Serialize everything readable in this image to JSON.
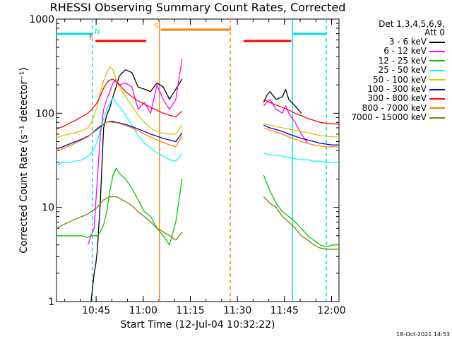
{
  "chart_data": {
    "type": "line",
    "title": "RHESSI Observing Summary Count Rates, Corrected",
    "xlabel": "Start Time (12-Jul-04 10:32:22)",
    "ylabel": "Corrected Count Rate (s⁻¹ detector⁻¹)",
    "yscale": "log",
    "ylim": [
      1,
      1000
    ],
    "xlim_minutes": [
      0,
      90
    ],
    "x_ticks": [
      {
        "label": "10:45",
        "minutes": 12.63
      },
      {
        "label": "11:00",
        "minutes": 27.63
      },
      {
        "label": "11:15",
        "minutes": 42.63
      },
      {
        "label": "11:30",
        "minutes": 57.63
      },
      {
        "label": "11:45",
        "minutes": 72.63
      },
      {
        "label": "12:00",
        "minutes": 87.63
      }
    ],
    "y_ticks": [
      {
        "label": "1",
        "value": 1
      },
      {
        "label": "10",
        "value": 10
      },
      {
        "label": "100",
        "value": 100
      },
      {
        "label": "1000",
        "value": 1000
      }
    ],
    "legend": {
      "header": [
        "Det 1,3,4,5,6,9,",
        "Att 0"
      ],
      "placement": "right"
    },
    "series": [
      {
        "name": "3 - 6 keV",
        "color": "#000000",
        "x": [
          0,
          5,
          8,
          10,
          11,
          11.5,
          12,
          12.5,
          13,
          14,
          15,
          16,
          17,
          18,
          19,
          20,
          22,
          24,
          26,
          28,
          30,
          32,
          34,
          36,
          38,
          40,
          54,
          56,
          58,
          60,
          62,
          63,
          64,
          65,
          66,
          67,
          68,
          70,
          72,
          73,
          74,
          76,
          78,
          80,
          82,
          84,
          86,
          88,
          90
        ],
        "y": [
          null,
          null,
          null,
          null,
          1,
          1.4,
          2,
          2.5,
          3.5,
          12,
          70,
          95,
          115,
          150,
          190,
          250,
          290,
          270,
          190,
          180,
          170,
          210,
          190,
          140,
          180,
          230,
          null,
          null,
          null,
          null,
          null,
          null,
          null,
          null,
          130,
          155,
          170,
          140,
          150,
          180,
          140,
          120,
          100,
          null,
          null,
          null,
          null,
          null,
          null
        ]
      },
      {
        "name": "6 - 12 keV",
        "color": "#ff00ff",
        "x": [
          0,
          4,
          6,
          8,
          10,
          11,
          12,
          13,
          14,
          15,
          16,
          17,
          18,
          19,
          20,
          22,
          24,
          26,
          28,
          30,
          32,
          34,
          36,
          38,
          40,
          54,
          56,
          58,
          60,
          62,
          63,
          64,
          65,
          66,
          67,
          68,
          70,
          72,
          73,
          74,
          76,
          78,
          80,
          82,
          84,
          86,
          88,
          90
        ],
        "y": [
          null,
          null,
          null,
          null,
          4,
          5,
          6,
          20,
          60,
          110,
          140,
          170,
          210,
          230,
          200,
          210,
          190,
          110,
          130,
          100,
          200,
          140,
          110,
          140,
          380,
          null,
          null,
          null,
          null,
          null,
          null,
          null,
          null,
          120,
          130,
          140,
          110,
          100,
          120,
          100,
          80,
          60,
          48,
          null,
          null,
          null,
          null,
          null
        ]
      },
      {
        "name": "12 - 25 keV",
        "color": "#00cc00",
        "x": [
          0,
          2,
          4,
          6,
          8,
          10,
          11,
          12,
          13,
          14,
          15,
          16,
          17,
          18,
          19,
          20,
          22,
          24,
          26,
          28,
          30,
          32,
          34,
          36,
          38,
          40,
          54,
          56,
          58,
          60,
          62,
          63,
          64,
          65,
          66,
          67,
          68,
          70,
          72,
          74,
          76,
          78,
          80,
          82,
          84,
          86,
          88,
          90
        ],
        "y": [
          5,
          5,
          5,
          5,
          5,
          4.8,
          5,
          5,
          5,
          5.5,
          6.5,
          9,
          15,
          22,
          26,
          23,
          20,
          16,
          12,
          9,
          8,
          6,
          5,
          4,
          7,
          20,
          null,
          null,
          null,
          null,
          null,
          null,
          null,
          null,
          22,
          18,
          15,
          11,
          9,
          8,
          7,
          6,
          5,
          4.5,
          4,
          3.8,
          4,
          4
        ]
      },
      {
        "name": "25 - 50 keV",
        "color": "#00ffff",
        "x": [
          0,
          2,
          4,
          6,
          8,
          10,
          11,
          12,
          13,
          14,
          15,
          16,
          17,
          18,
          19,
          20,
          22,
          24,
          26,
          28,
          30,
          32,
          34,
          36,
          38,
          40,
          54,
          56,
          58,
          60,
          62,
          63,
          64,
          65,
          66,
          67,
          68,
          70,
          72,
          74,
          76,
          78,
          80,
          82,
          84,
          86,
          88,
          90
        ],
        "y": [
          28,
          30,
          30,
          31,
          32,
          35,
          38,
          42,
          50,
          68,
          88,
          110,
          130,
          145,
          130,
          118,
          95,
          75,
          58,
          48,
          43,
          38,
          35,
          32,
          31,
          37,
          null,
          null,
          null,
          null,
          null,
          null,
          null,
          null,
          38,
          37,
          36,
          36,
          35,
          34,
          33,
          32,
          32,
          31,
          31,
          30,
          30,
          30
        ]
      },
      {
        "name": "50 - 100 keV",
        "color": "#cccc00",
        "x": [
          0,
          2,
          4,
          6,
          8,
          10,
          11,
          12,
          13,
          14,
          15,
          16,
          17,
          18,
          19,
          20,
          22,
          24,
          26,
          28,
          30,
          32,
          34,
          36,
          38,
          40,
          54,
          56,
          58,
          60,
          62,
          63,
          64,
          65,
          66,
          67,
          68,
          70,
          72,
          74,
          76,
          78,
          80,
          82,
          84,
          86,
          88,
          90
        ],
        "y": [
          55,
          58,
          60,
          62,
          65,
          70,
          78,
          95,
          120,
          170,
          220,
          270,
          310,
          290,
          230,
          190,
          150,
          120,
          95,
          80,
          70,
          64,
          61,
          60,
          60,
          75,
          null,
          null,
          null,
          null,
          null,
          null,
          null,
          null,
          78,
          76,
          75,
          72,
          70,
          68,
          66,
          64,
          62,
          60,
          58,
          57,
          56,
          56
        ]
      },
      {
        "name": "100 - 300 keV",
        "color": "#0000cc",
        "x": [
          0,
          2,
          4,
          6,
          8,
          10,
          11,
          12,
          13,
          14,
          15,
          16,
          17,
          18,
          19,
          20,
          22,
          24,
          26,
          28,
          30,
          32,
          34,
          36,
          38,
          40,
          54,
          56,
          58,
          60,
          62,
          63,
          64,
          65,
          66,
          67,
          68,
          70,
          72,
          74,
          76,
          78,
          80,
          82,
          84,
          86,
          88,
          90
        ],
        "y": [
          42,
          44,
          47,
          50,
          53,
          57,
          60,
          64,
          68,
          72,
          76,
          80,
          82,
          82,
          80,
          79,
          76,
          72,
          68,
          64,
          60,
          57,
          54,
          52,
          50,
          62,
          null,
          null,
          null,
          null,
          null,
          null,
          null,
          null,
          75,
          72,
          70,
          67,
          64,
          60,
          57,
          54,
          52,
          50,
          48,
          47,
          46,
          46
        ]
      },
      {
        "name": "300 - 800 keV",
        "color": "#ff0000",
        "x": [
          0,
          2,
          4,
          6,
          8,
          10,
          11,
          12,
          13,
          14,
          15,
          16,
          17,
          18,
          19,
          20,
          22,
          24,
          26,
          28,
          30,
          32,
          34,
          36,
          38,
          40,
          54,
          56,
          58,
          60,
          62,
          63,
          64,
          65,
          66,
          67,
          68,
          70,
          72,
          74,
          76,
          78,
          80,
          82,
          84,
          86,
          88,
          90
        ],
        "y": [
          68,
          72,
          78,
          84,
          92,
          100,
          108,
          118,
          130,
          155,
          185,
          210,
          225,
          230,
          215,
          200,
          170,
          150,
          135,
          125,
          115,
          108,
          100,
          95,
          92,
          105,
          null,
          null,
          null,
          null,
          null,
          null,
          null,
          null,
          140,
          135,
          130,
          122,
          115,
          108,
          100,
          94,
          88,
          84,
          80,
          78,
          77,
          77
        ]
      },
      {
        "name": "800 - 7000 keV",
        "color": "#ff8000",
        "x": [
          0,
          2,
          4,
          6,
          8,
          10,
          11,
          12,
          13,
          14,
          15,
          16,
          17,
          18,
          19,
          20,
          22,
          24,
          26,
          28,
          30,
          32,
          34,
          36,
          38,
          40,
          54,
          56,
          58,
          60,
          62,
          63,
          64,
          65,
          66,
          67,
          68,
          70,
          72,
          74,
          76,
          78,
          80,
          82,
          84,
          86,
          88,
          90
        ],
        "y": [
          40,
          42,
          45,
          48,
          52,
          56,
          60,
          65,
          70,
          74,
          77,
          80,
          81,
          80,
          79,
          78,
          74,
          70,
          65,
          60,
          56,
          52,
          49,
          46,
          44,
          58,
          null,
          null,
          null,
          null,
          null,
          null,
          null,
          null,
          70,
          68,
          66,
          63,
          60,
          56,
          53,
          50,
          48,
          46,
          45,
          44,
          44,
          44
        ]
      },
      {
        "name": "7000 - 15000 keV",
        "color": "#808000",
        "x": [
          0,
          2,
          4,
          6,
          8,
          10,
          11,
          12,
          13,
          14,
          15,
          16,
          17,
          18,
          19,
          20,
          22,
          24,
          26,
          28,
          30,
          32,
          34,
          36,
          38,
          40,
          54,
          56,
          58,
          60,
          62,
          63,
          64,
          65,
          66,
          67,
          68,
          70,
          72,
          74,
          76,
          78,
          80,
          82,
          84,
          86,
          88,
          90
        ],
        "y": [
          6,
          6.5,
          7,
          7.5,
          8,
          8.5,
          9,
          9.5,
          10,
          11,
          12,
          12.5,
          13,
          13,
          13,
          12.5,
          11.5,
          10.5,
          9,
          8,
          7,
          6,
          5.5,
          5,
          4.5,
          5.5,
          null,
          null,
          null,
          null,
          null,
          null,
          null,
          null,
          13,
          12,
          11,
          10,
          8,
          7,
          6,
          5,
          4.5,
          4,
          3.7,
          3.6,
          3.6,
          3.6
        ]
      }
    ],
    "status_bars": [
      {
        "label": "",
        "color": "#00e0e0",
        "row": "high",
        "x": [
          0,
          11.4
        ]
      },
      {
        "label": "N",
        "color": "#00e0e0",
        "row": "high_label",
        "x": [
          13,
          13
        ]
      },
      {
        "label": "",
        "color": "#00e0e0",
        "row": "high",
        "x": [
          75.4,
          86
        ]
      },
      {
        "label": "F",
        "color": "#ff0000",
        "row": "low",
        "x": [
          12.4,
          28.6
        ]
      },
      {
        "label": "",
        "color": "#ff0000",
        "row": "low",
        "x": [
          59.6,
          74.8
        ]
      },
      {
        "label": "S",
        "color": "#ff8000",
        "row": "mid",
        "x": [
          33.2,
          55.6
        ]
      }
    ],
    "vertical_lines": [
      {
        "x": 11.4,
        "color": "#00e0e0",
        "style": "dashed"
      },
      {
        "x": 32.8,
        "color": "#ff8000",
        "style": "solid"
      },
      {
        "x": 55.4,
        "color": "#ff8000",
        "style": "dashed"
      },
      {
        "x": 75.2,
        "color": "#00e0e0",
        "style": "solid"
      },
      {
        "x": 86,
        "color": "#00e0e0",
        "style": "dashed"
      }
    ]
  },
  "footer": {
    "timestamp": "18-Oct-2021 14:53"
  }
}
